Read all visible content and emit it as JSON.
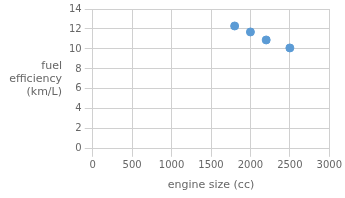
{
  "chart_data": {
    "type": "scatter",
    "x": [
      1800,
      2000,
      2200,
      2500
    ],
    "values": [
      12.3,
      11.7,
      10.9,
      10.1
    ],
    "xlabel": "engine size (cc)",
    "ylabel": "fuel\nefficiency\n(km/L)",
    "xlim": [
      0,
      3000
    ],
    "ylim": [
      0,
      14
    ],
    "xticks": [
      0,
      500,
      1000,
      1500,
      2000,
      2500,
      3000
    ],
    "yticks": [
      0,
      2,
      4,
      6,
      8,
      10,
      12,
      14
    ],
    "color": "#5b9bd5",
    "grid": true
  }
}
